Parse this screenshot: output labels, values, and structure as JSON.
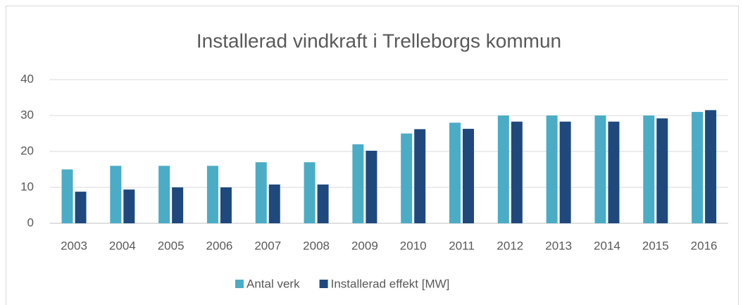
{
  "chart_data": {
    "type": "bar",
    "title": "Installerad vindkraft i Trelleborgs kommun",
    "categories": [
      "2003",
      "2004",
      "2005",
      "2006",
      "2007",
      "2008",
      "2009",
      "2010",
      "2011",
      "2012",
      "2013",
      "2014",
      "2015",
      "2016"
    ],
    "series": [
      {
        "name": "Antal verk",
        "color": "#4bacc6",
        "values": [
          15,
          16,
          16,
          16,
          17,
          17,
          22,
          25,
          28,
          30,
          30,
          30,
          30,
          31
        ]
      },
      {
        "name": "Installerad effekt [MW]",
        "color": "#1f497d",
        "values": [
          8.8,
          9.4,
          10,
          10,
          10.8,
          10.8,
          20.2,
          26.2,
          26.3,
          28.3,
          28.3,
          28.3,
          29.2,
          31.5
        ]
      }
    ],
    "ylim": [
      0,
      40
    ],
    "yticks": [
      0,
      10,
      20,
      30,
      40
    ],
    "grid": true,
    "legend": "bottom"
  }
}
